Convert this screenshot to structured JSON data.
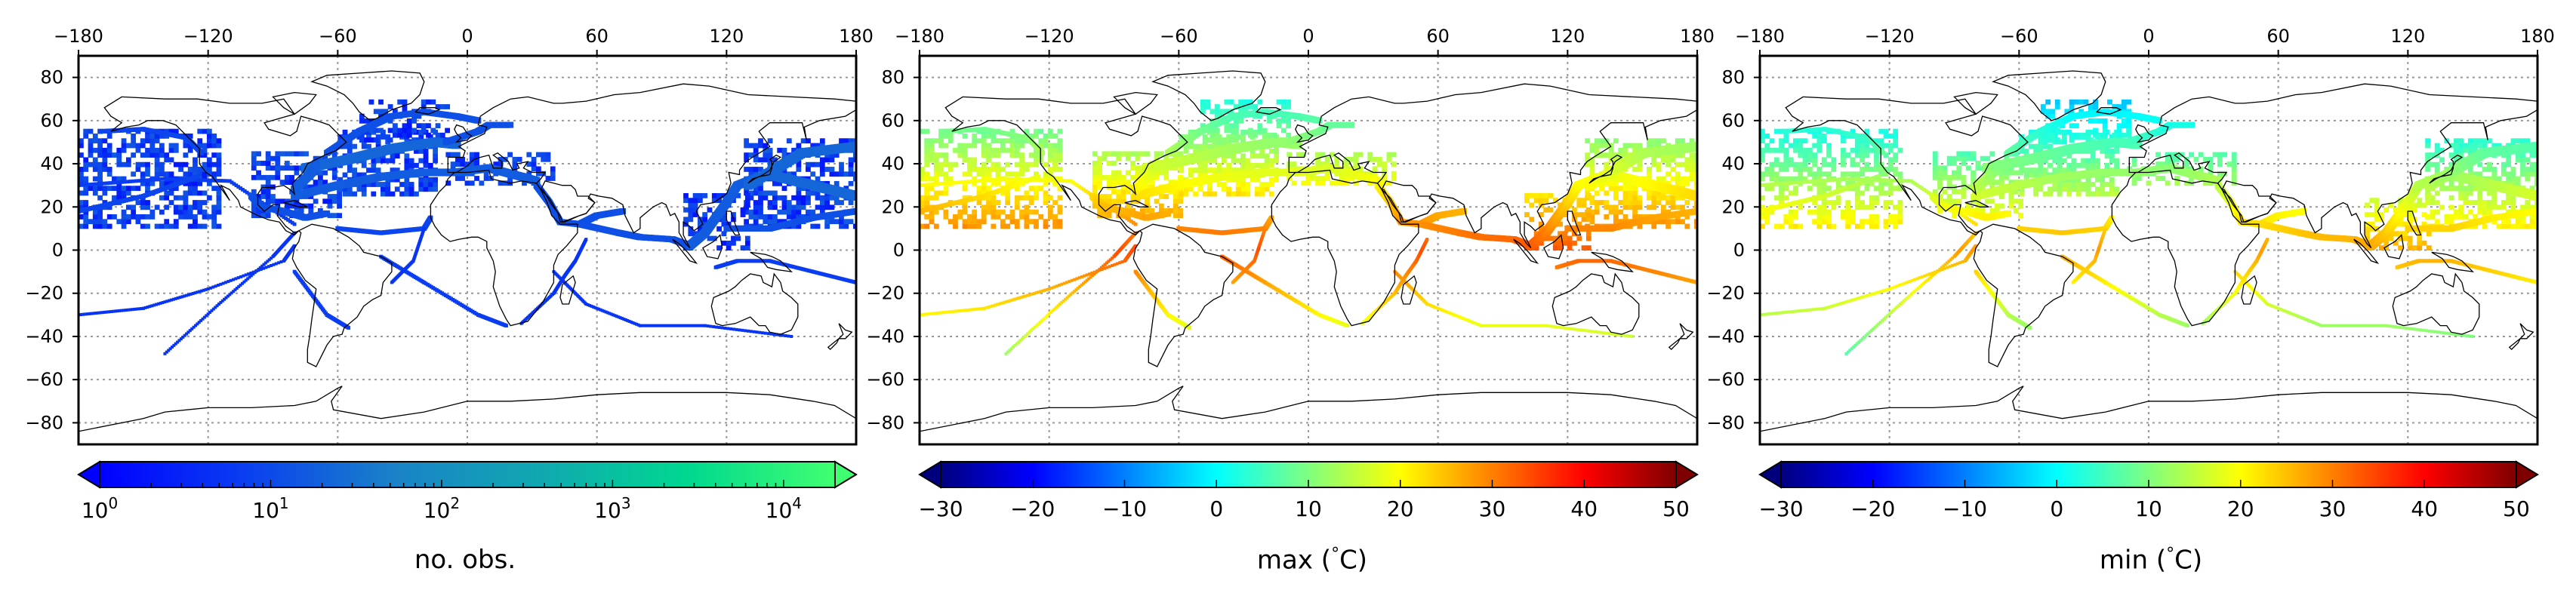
{
  "figure": {
    "panels": [
      {
        "id": "obs",
        "colorbar_label": "no. obs.",
        "colorbar_scale": "log",
        "colorbar_ticks": [
          "10^0",
          "10^1",
          "10^2",
          "10^3",
          "10^4"
        ],
        "colorbar_tick_bases": [
          "10",
          "10",
          "10",
          "10",
          "10"
        ],
        "colorbar_tick_exps": [
          "0",
          "1",
          "2",
          "3",
          "4"
        ],
        "colorbar_range": [
          1,
          20000
        ],
        "colormap": [
          "#0000ff",
          "#0a3ff0",
          "#1460dc",
          "#1a82c8",
          "#10a8b0",
          "#00d890",
          "#40ff70"
        ],
        "extend": "both"
      },
      {
        "id": "max",
        "colorbar_label": "max (°C)",
        "colorbar_label_parts": [
          "max (",
          "°",
          "C)"
        ],
        "colorbar_ticks": [
          "−30",
          "−20",
          "−10",
          "0",
          "10",
          "20",
          "30",
          "40",
          "50"
        ],
        "colorbar_range": [
          -30,
          50
        ],
        "colormap": [
          "#00007f",
          "#0000ff",
          "#007fff",
          "#00ffff",
          "#7fff7f",
          "#ffff00",
          "#ff7f00",
          "#ff0000",
          "#7f0000"
        ],
        "extend": "both"
      },
      {
        "id": "min",
        "colorbar_label": "min (°C)",
        "colorbar_label_parts": [
          "min (",
          "°",
          "C)"
        ],
        "colorbar_ticks": [
          "−30",
          "−20",
          "−10",
          "0",
          "10",
          "20",
          "30",
          "40",
          "50"
        ],
        "colorbar_range": [
          -30,
          50
        ],
        "colormap": [
          "#00007f",
          "#0000ff",
          "#007fff",
          "#00ffff",
          "#7fff7f",
          "#ffff00",
          "#ff7f00",
          "#ff0000",
          "#7f0000"
        ],
        "extend": "both"
      }
    ],
    "lon_ticks": [
      "−180",
      "−120",
      "−60",
      "0",
      "60",
      "120",
      "180"
    ],
    "lat_ticks": [
      "80",
      "60",
      "40",
      "20",
      "0",
      "−20",
      "−40",
      "−60",
      "−80"
    ],
    "lon_range": [
      -180,
      180
    ],
    "lat_range": [
      -90,
      90
    ],
    "grid": "dotted",
    "projection": "plate carree"
  }
}
